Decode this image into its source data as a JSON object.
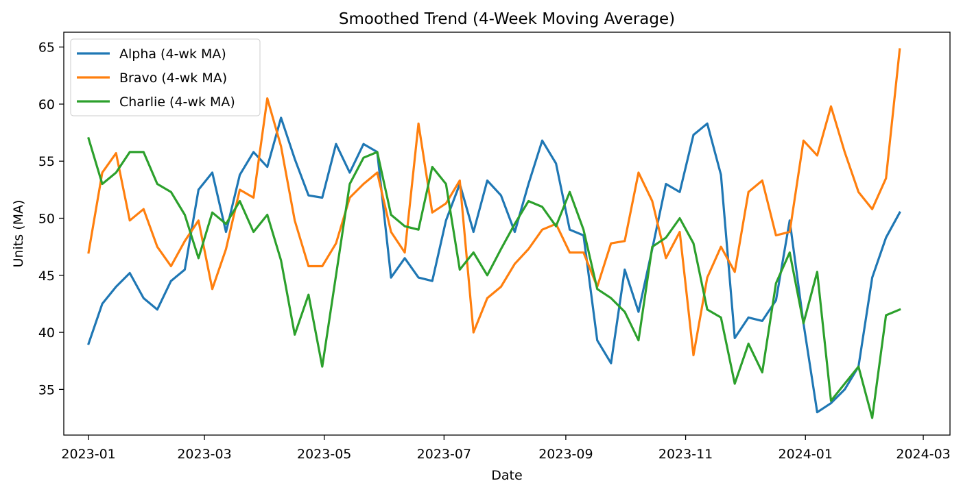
{
  "chart_data": {
    "type": "line",
    "title": "Smoothed Trend (4-Week Moving Average)",
    "xlabel": "Date",
    "ylabel": "Units (MA)",
    "grid": false,
    "legend_position": "upper-left",
    "x_tick_labels": [
      "2023-01",
      "2023-03",
      "2023-05",
      "2023-07",
      "2023-09",
      "2023-11",
      "2024-01",
      "2024-03"
    ],
    "y_ticks": [
      35,
      40,
      45,
      50,
      55,
      60,
      65
    ],
    "ylim": [
      31.0,
      66.3
    ],
    "x_start_date": "2023-01-01",
    "x_step_days": 7,
    "x_range_days": [
      -12.6,
      438.6
    ],
    "x_tick_days": [
      0,
      59,
      120,
      181,
      243,
      304,
      365,
      425
    ],
    "series": [
      {
        "name": "Alpha (4-wk MA)",
        "color": "#1f77b4",
        "values": [
          39.0,
          42.5,
          44.0,
          45.2,
          43.0,
          42.0,
          44.5,
          45.5,
          52.5,
          54.0,
          48.8,
          53.8,
          55.8,
          54.5,
          58.8,
          55.2,
          52.0,
          51.8,
          56.5,
          54.0,
          56.5,
          55.8,
          44.8,
          46.5,
          44.8,
          44.5,
          49.8,
          53.0,
          48.8,
          53.3,
          52.0,
          48.8,
          53.0,
          56.8,
          54.8,
          49.0,
          48.5,
          39.3,
          37.3,
          45.5,
          41.8,
          47.3,
          53.0,
          52.3,
          57.3,
          58.3,
          53.8,
          39.5,
          41.3,
          41.0,
          42.8,
          49.8,
          40.8,
          33.0,
          33.8,
          35.0,
          37.0,
          44.8,
          48.3,
          50.5
        ]
      },
      {
        "name": "Bravo (4-wk MA)",
        "color": "#ff7f0e",
        "values": [
          47.0,
          54.0,
          55.7,
          49.8,
          50.8,
          47.5,
          45.8,
          48.0,
          49.8,
          43.8,
          47.3,
          52.5,
          51.8,
          60.5,
          56.3,
          49.8,
          45.8,
          45.8,
          47.8,
          51.8,
          53.0,
          54.0,
          48.8,
          47.0,
          58.3,
          50.5,
          51.3,
          53.3,
          40.0,
          43.0,
          44.0,
          46.0,
          47.3,
          49.0,
          49.5,
          47.0,
          47.0,
          44.0,
          47.8,
          48.0,
          54.0,
          51.5,
          46.5,
          48.8,
          38.0,
          44.8,
          47.5,
          45.3,
          52.3,
          53.3,
          48.5,
          48.8,
          56.8,
          55.5,
          59.8,
          55.8,
          52.3,
          50.8,
          53.5,
          64.8
        ]
      },
      {
        "name": "Charlie (4-wk MA)",
        "color": "#2ca02c",
        "values": [
          57.0,
          53.0,
          54.0,
          55.8,
          55.8,
          53.0,
          52.3,
          50.3,
          46.5,
          50.5,
          49.5,
          51.5,
          48.8,
          50.3,
          46.3,
          39.8,
          43.3,
          37.0,
          45.0,
          53.0,
          55.3,
          55.8,
          50.3,
          49.3,
          49.0,
          54.5,
          53.0,
          45.5,
          47.0,
          45.0,
          47.3,
          49.5,
          51.5,
          51.0,
          49.3,
          52.3,
          49.0,
          43.8,
          43.0,
          41.8,
          39.3,
          47.5,
          48.3,
          50.0,
          47.8,
          42.0,
          41.3,
          35.5,
          39.0,
          36.5,
          44.3,
          47.0,
          40.8,
          45.3,
          34.0,
          35.5,
          37.0,
          32.5,
          41.5,
          42.0
        ]
      }
    ]
  }
}
